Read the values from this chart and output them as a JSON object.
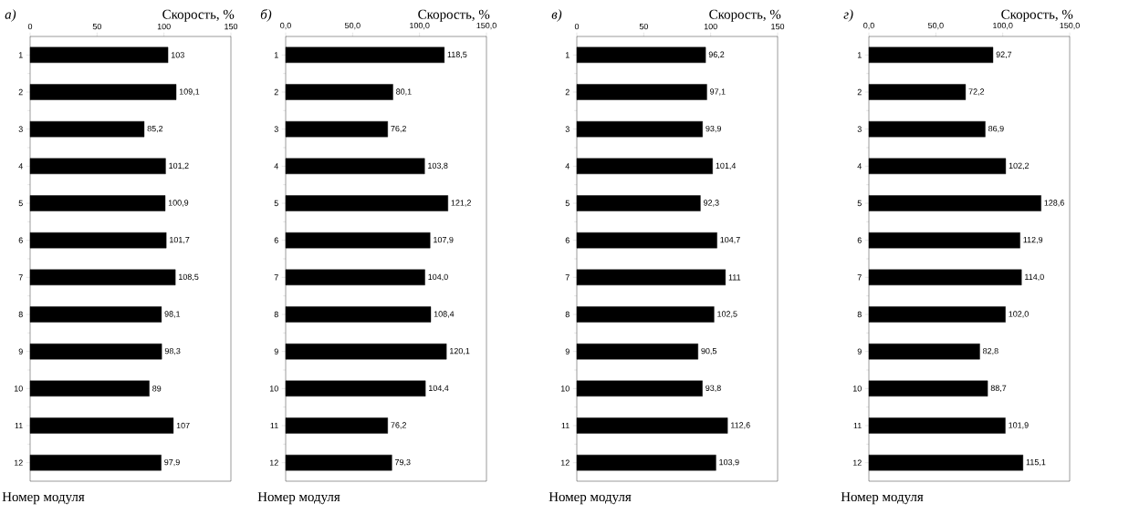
{
  "chart_data": [
    {
      "type": "bar",
      "orientation": "horizontal",
      "title": "a)",
      "xlabel": "Скорость, %",
      "ylabel": "Номер модуля",
      "categories": [
        "1",
        "2",
        "3",
        "4",
        "5",
        "6",
        "7",
        "8",
        "9",
        "10",
        "11",
        "12"
      ],
      "values": [
        103,
        109.1,
        85.2,
        101.2,
        100.9,
        101.7,
        108.5,
        98.1,
        98.3,
        89,
        107,
        97.9
      ],
      "value_labels": [
        "103",
        "109,1",
        "85,2",
        "101,2",
        "100,9",
        "101,7",
        "108,5",
        "98,1",
        "98,3",
        "89",
        "107",
        "97,9"
      ],
      "color": "#000000",
      "xlim": [
        0,
        150
      ],
      "xticks": [
        0,
        50,
        100,
        150
      ]
    },
    {
      "type": "bar",
      "orientation": "horizontal",
      "title": "б)",
      "xlabel": "Скорость, %",
      "ylabel": "Номер модуля",
      "categories": [
        "1",
        "2",
        "3",
        "4",
        "5",
        "6",
        "7",
        "8",
        "9",
        "10",
        "11",
        "12"
      ],
      "values": [
        118.5,
        80.1,
        76.2,
        103.8,
        121.2,
        107.9,
        104.0,
        108.4,
        120.1,
        104.4,
        76.2,
        79.3
      ],
      "value_labels": [
        "118,5",
        "80,1",
        "76,2",
        "103,8",
        "121,2",
        "107,9",
        "104,0",
        "108,4",
        "120,1",
        "104,4",
        "76,2",
        "79,3"
      ],
      "color": "#000000",
      "xlim": [
        0,
        150
      ],
      "xticks": [
        {
          "value": 0,
          "label": "0,0"
        },
        {
          "value": 50,
          "label": "50,0"
        },
        {
          "value": 100,
          "label": "100,0"
        },
        {
          "value": 150,
          "label": "150,0"
        }
      ]
    },
    {
      "type": "bar",
      "orientation": "horizontal",
      "title": "в)",
      "xlabel": "Скорость, %",
      "ylabel": "Номер модуля",
      "categories": [
        "1",
        "2",
        "3",
        "4",
        "5",
        "6",
        "7",
        "8",
        "9",
        "10",
        "11",
        "12"
      ],
      "values": [
        96.2,
        97.1,
        93.9,
        101.4,
        92.3,
        104.7,
        111,
        102.5,
        90.5,
        93.8,
        112.6,
        103.9
      ],
      "value_labels": [
        "96,2",
        "97,1",
        "93,9",
        "101,4",
        "92,3",
        "104,7",
        "111",
        "102,5",
        "90,5",
        "93,8",
        "112,6",
        "103,9"
      ],
      "color": "#000000",
      "xlim": [
        0,
        150
      ],
      "xticks": [
        0,
        50,
        100,
        150
      ]
    },
    {
      "type": "bar",
      "orientation": "horizontal",
      "title": "г)",
      "xlabel": "Скорость, %",
      "ylabel": "Номер модуля",
      "categories": [
        "1",
        "2",
        "3",
        "4",
        "5",
        "6",
        "7",
        "8",
        "9",
        "10",
        "11",
        "12"
      ],
      "values": [
        92.7,
        72.2,
        86.9,
        102.2,
        128.6,
        112.9,
        114.0,
        102.0,
        82.8,
        88.7,
        101.9,
        115.1
      ],
      "value_labels": [
        "92,7",
        "72,2",
        "86,9",
        "102,2",
        "128,6",
        "112,9",
        "114,0",
        "102,0",
        "82,8",
        "88,7",
        "101,9",
        "115,1"
      ],
      "color": "#000000",
      "xlim": [
        0,
        150
      ],
      "xticks": [
        {
          "value": 0,
          "label": "0,0"
        },
        {
          "value": 50,
          "label": "50,0"
        },
        {
          "value": 100,
          "label": "100,0"
        },
        {
          "value": 150,
          "label": "150,0"
        }
      ]
    }
  ]
}
